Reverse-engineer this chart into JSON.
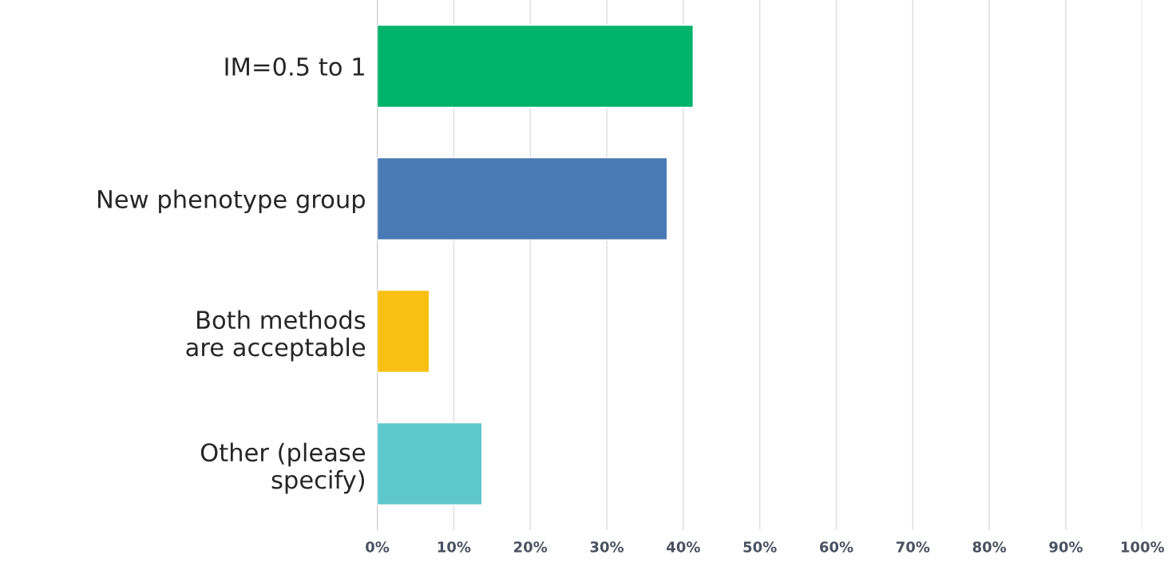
{
  "chart_data": {
    "type": "bar",
    "orientation": "horizontal",
    "categories": [
      "IM=0.5 to 1",
      "New phenotype group",
      "Both methods\nare acceptable",
      "Other (please\nspecify)"
    ],
    "values": [
      41.3,
      37.9,
      6.8,
      13.7
    ],
    "colors": [
      "#00b36b",
      "#4a7ab5",
      "#f9c013",
      "#5fc8cc"
    ],
    "xlim": [
      0,
      100
    ],
    "xticks": [
      {
        "value": 0,
        "label": "0%"
      },
      {
        "value": 10,
        "label": "10%"
      },
      {
        "value": 20,
        "label": "20%"
      },
      {
        "value": 30,
        "label": "30%"
      },
      {
        "value": 40,
        "label": "40%"
      },
      {
        "value": 50,
        "label": "50%"
      },
      {
        "value": 60,
        "label": "60%"
      },
      {
        "value": 70,
        "label": "70%"
      },
      {
        "value": 80,
        "label": "80%"
      },
      {
        "value": 90,
        "label": "90%"
      },
      {
        "value": 100,
        "label": "100%"
      }
    ],
    "grid": "x"
  }
}
